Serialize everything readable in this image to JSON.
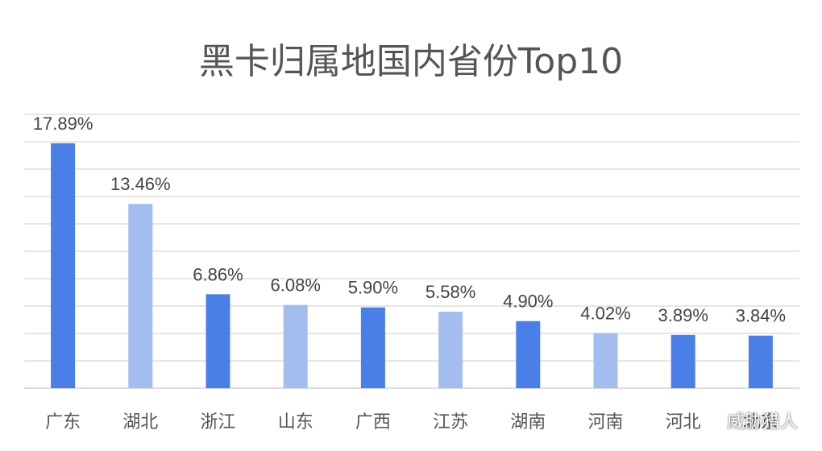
{
  "chart_data": {
    "type": "bar",
    "title": "黑卡归属地国内省份Top10",
    "categories": [
      "广东",
      "湖北",
      "浙江",
      "山东",
      "广西",
      "江苏",
      "湖南",
      "河南",
      "河北",
      "北京"
    ],
    "values": [
      17.89,
      13.46,
      6.86,
      6.08,
      5.9,
      5.58,
      4.9,
      4.02,
      3.89,
      3.84
    ],
    "value_labels": [
      "17.89%",
      "13.46%",
      "6.86%",
      "6.08%",
      "5.90%",
      "5.58%",
      "4.90%",
      "4.02%",
      "3.89%",
      "3.84%"
    ],
    "xlabel": "",
    "ylabel": "",
    "ylim": [
      0,
      20
    ],
    "grid": true,
    "legend": "none",
    "colors": [
      "#4a7fe8",
      "#a3bdee",
      "#4a7fe8",
      "#a3bdee",
      "#4a7fe8",
      "#a3bdee",
      "#4a7fe8",
      "#a3bdee",
      "#4a7fe8",
      "#4a7fe8"
    ]
  },
  "watermark": {
    "text": "威胁猎人",
    "icon": "wechat-icon"
  }
}
